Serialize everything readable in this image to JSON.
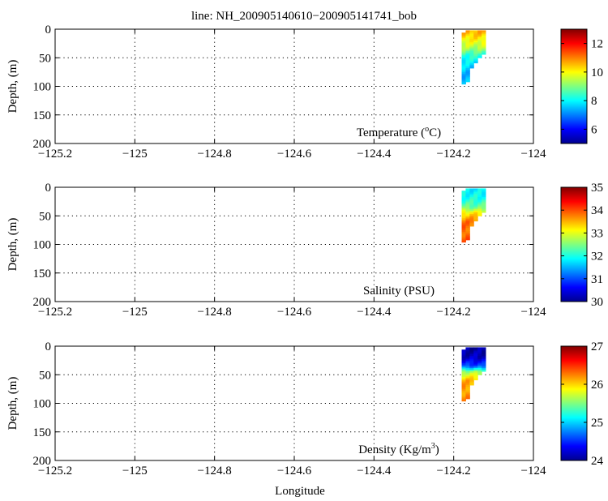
{
  "figure": {
    "title": "line: NH_200905140610−200905141741_bob",
    "xlabel": "Longitude"
  },
  "chart_data": [
    {
      "type": "heatmap",
      "panel": "temperature",
      "annotation": {
        "pre": "Temperature (",
        "sup": "o",
        "post": "C)"
      },
      "ylabel": "Depth, (m)",
      "xlim": [
        -125.2,
        -124.0
      ],
      "ylim": [
        0,
        200
      ],
      "y_inverted": true,
      "xticks": [
        -125.2,
        -125,
        -124.8,
        -124.6,
        -124.4,
        -124.2,
        -124
      ],
      "yticks": [
        0,
        50,
        100,
        150,
        200
      ],
      "grid": true,
      "colorbar": {
        "min": 5,
        "max": 13,
        "ticks": [
          6,
          8,
          10,
          12
        ]
      },
      "data_region": {
        "lon_start": -124.18,
        "lon_end": -124.12,
        "depth_max": 95
      },
      "profile": [
        {
          "depth": 5,
          "value": 10.6
        },
        {
          "depth": 20,
          "value": 10.0
        },
        {
          "depth": 32,
          "value": 9.4
        },
        {
          "depth": 45,
          "value": 8.4
        },
        {
          "depth": 60,
          "value": 7.8
        },
        {
          "depth": 75,
          "value": 7.5
        },
        {
          "depth": 95,
          "value": 7.4
        }
      ]
    },
    {
      "type": "heatmap",
      "panel": "salinity",
      "annotation": {
        "pre": "Salinity (PSU)",
        "sup": "",
        "post": ""
      },
      "ylabel": "Depth, (m)",
      "xlim": [
        -125.2,
        -124.0
      ],
      "ylim": [
        0,
        200
      ],
      "y_inverted": true,
      "xticks": [
        -125.2,
        -125,
        -124.8,
        -124.6,
        -124.4,
        -124.2,
        -124
      ],
      "yticks": [
        0,
        50,
        100,
        150,
        200
      ],
      "grid": true,
      "colorbar": {
        "min": 30,
        "max": 35,
        "ticks": [
          30,
          31,
          32,
          33,
          34,
          35
        ]
      },
      "data_region": {
        "lon_start": -124.18,
        "lon_end": -124.12,
        "depth_max": 95
      },
      "profile": [
        {
          "depth": 5,
          "value": 31.8
        },
        {
          "depth": 20,
          "value": 32.0
        },
        {
          "depth": 35,
          "value": 32.4
        },
        {
          "depth": 45,
          "value": 33.2
        },
        {
          "depth": 60,
          "value": 33.8
        },
        {
          "depth": 80,
          "value": 33.9
        },
        {
          "depth": 95,
          "value": 33.9
        }
      ]
    },
    {
      "type": "heatmap",
      "panel": "density",
      "annotation": {
        "pre": "Density (Kg/m",
        "sup": "3",
        "post": ")"
      },
      "ylabel": "Depth, (m)",
      "xlim": [
        -125.2,
        -124.0
      ],
      "ylim": [
        0,
        200
      ],
      "y_inverted": true,
      "xticks": [
        -125.2,
        -125,
        -124.8,
        -124.6,
        -124.4,
        -124.2,
        -124
      ],
      "yticks": [
        0,
        50,
        100,
        150,
        200
      ],
      "grid": true,
      "colorbar": {
        "min": 24,
        "max": 27,
        "ticks": [
          24,
          25,
          26,
          27
        ]
      },
      "data_region": {
        "lon_start": -124.18,
        "lon_end": -124.12,
        "depth_max": 95
      },
      "profile": [
        {
          "depth": 5,
          "value": 24.1
        },
        {
          "depth": 20,
          "value": 24.2
        },
        {
          "depth": 35,
          "value": 24.6
        },
        {
          "depth": 45,
          "value": 25.6
        },
        {
          "depth": 60,
          "value": 26.1
        },
        {
          "depth": 80,
          "value": 26.2
        },
        {
          "depth": 95,
          "value": 26.2
        }
      ]
    }
  ]
}
